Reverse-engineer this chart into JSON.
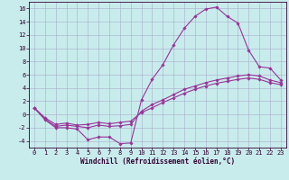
{
  "xlabel": "Windchill (Refroidissement éolien,°C)",
  "bg_color": "#c8ecec",
  "line_color": "#993399",
  "xlim": [
    -0.5,
    23.5
  ],
  "ylim": [
    -5,
    17
  ],
  "xticks": [
    0,
    1,
    2,
    3,
    4,
    5,
    6,
    7,
    8,
    9,
    10,
    11,
    12,
    13,
    14,
    15,
    16,
    17,
    18,
    19,
    20,
    21,
    22,
    23
  ],
  "yticks": [
    -4,
    -2,
    0,
    2,
    4,
    6,
    8,
    10,
    12,
    14,
    16
  ],
  "line1_x": [
    0,
    1,
    2,
    3,
    4,
    5,
    6,
    7,
    8,
    9,
    10,
    11,
    12,
    13,
    14,
    15,
    16,
    17,
    18,
    19,
    20,
    21,
    22,
    23
  ],
  "line1_y": [
    1.0,
    -0.8,
    -2.0,
    -2.0,
    -2.2,
    -3.8,
    -3.4,
    -3.4,
    -4.4,
    -4.3,
    2.2,
    5.3,
    7.5,
    10.5,
    13.0,
    14.8,
    15.9,
    16.2,
    14.8,
    13.8,
    9.7,
    7.2,
    7.0,
    5.2
  ],
  "line2_x": [
    0,
    1,
    2,
    3,
    4,
    5,
    6,
    7,
    8,
    9,
    10,
    11,
    12,
    13,
    14,
    15,
    16,
    17,
    18,
    19,
    20,
    21,
    22,
    23
  ],
  "line2_y": [
    1.0,
    -0.7,
    -1.8,
    -1.6,
    -1.8,
    -2.0,
    -1.6,
    -1.8,
    -1.7,
    -1.5,
    0.5,
    1.5,
    2.2,
    3.0,
    3.8,
    4.3,
    4.8,
    5.2,
    5.5,
    5.8,
    6.0,
    5.8,
    5.2,
    4.8
  ],
  "line3_x": [
    0,
    1,
    2,
    3,
    4,
    5,
    6,
    7,
    8,
    9,
    10,
    11,
    12,
    13,
    14,
    15,
    16,
    17,
    18,
    19,
    20,
    21,
    22,
    23
  ],
  "line3_y": [
    1.0,
    -0.5,
    -1.5,
    -1.3,
    -1.6,
    -1.5,
    -1.2,
    -1.4,
    -1.2,
    -1.0,
    0.3,
    1.0,
    1.8,
    2.5,
    3.2,
    3.8,
    4.3,
    4.7,
    5.0,
    5.3,
    5.5,
    5.3,
    4.8,
    4.5
  ],
  "grid_color": "#aaaacc",
  "marker": "D",
  "marker_size": 1.8,
  "linewidth": 0.8,
  "xlabel_fontsize": 5.5,
  "tick_fontsize": 5.0
}
